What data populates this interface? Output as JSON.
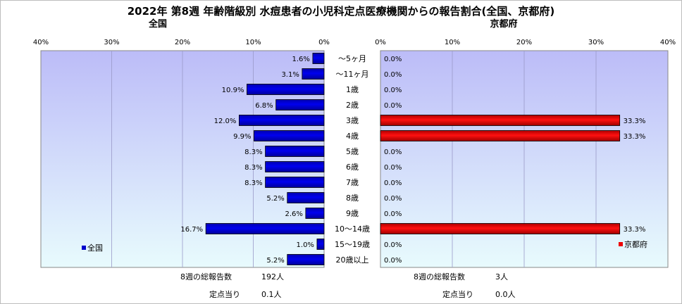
{
  "title": "2022年 第8週 年齢階級別 水痘患者の小児科定点医療機関からの報告割合(全国、京都府)",
  "chart_data": {
    "type": "bar",
    "orientation": "horizontal",
    "categories": [
      "～5ヶ月",
      "～11ヶ月",
      "1歳",
      "2歳",
      "3歳",
      "4歳",
      "5歳",
      "6歳",
      "7歳",
      "8歳",
      "9歳",
      "10～14歳",
      "15～19歳",
      "20歳以上"
    ],
    "panels": [
      {
        "name": "全国",
        "direction": "left",
        "xlim": [
          0,
          40
        ],
        "ticks": [
          "0%",
          "10%",
          "20%",
          "30%",
          "40%"
        ],
        "values": [
          1.6,
          3.1,
          10.9,
          6.8,
          12.0,
          9.9,
          8.3,
          8.3,
          8.3,
          5.2,
          2.6,
          16.7,
          1.0,
          5.2
        ],
        "labels": [
          "1.6%",
          "3.1%",
          "10.9%",
          "6.8%",
          "12.0%",
          "9.9%",
          "8.3%",
          "8.3%",
          "8.3%",
          "5.2%",
          "2.6%",
          "16.7%",
          "1.0%",
          "5.2%"
        ],
        "color": "#0000cc",
        "legend": "全国",
        "legend_position": "bottom-left",
        "footer": [
          {
            "label": "8週の総報告数",
            "value": "192人"
          },
          {
            "label": "定点当り",
            "value": "0.1人"
          }
        ]
      },
      {
        "name": "京都府",
        "direction": "right",
        "xlim": [
          0,
          40
        ],
        "ticks": [
          "0%",
          "10%",
          "20%",
          "30%",
          "40%"
        ],
        "values": [
          0,
          0,
          0,
          0,
          33.3,
          33.3,
          0,
          0,
          0,
          0,
          0,
          33.3,
          0,
          0
        ],
        "labels": [
          "0.0%",
          "0.0%",
          "0.0%",
          "0.0%",
          "33.3%",
          "33.3%",
          "0.0%",
          "0.0%",
          "0.0%",
          "0.0%",
          "0.0%",
          "33.3%",
          "0.0%",
          "0.0%"
        ],
        "color": "#ee0000",
        "legend": "京都府",
        "legend_position": "bottom-right",
        "footer": [
          {
            "label": "8週の総報告数",
            "value": "3人"
          },
          {
            "label": "定点当り",
            "value": "0.0人"
          }
        ]
      }
    ],
    "grid": true
  }
}
